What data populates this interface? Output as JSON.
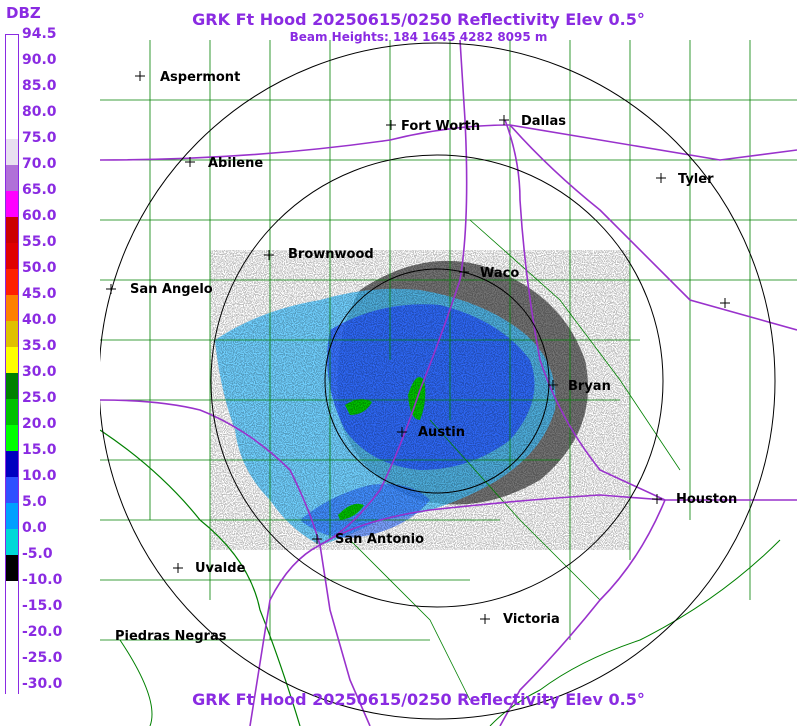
{
  "title": "GRK Ft Hood 20250615/0250 Reflectivity Elev 0.5°",
  "subtitle": "Beam Heights: 184 1645 4282 8095 m",
  "title_bottom": "GRK Ft Hood 20250615/0250 Reflectivity Elev 0.5°",
  "legend": {
    "unit": "DBZ",
    "labels": [
      "94.5",
      "90.0",
      "85.0",
      "80.0",
      "75.0",
      "70.0",
      "65.0",
      "60.0",
      "55.0",
      "50.0",
      "45.0",
      "40.0",
      "35.0",
      "30.0",
      "25.0",
      "20.0",
      "15.0",
      "10.0",
      "5.0",
      "0.0",
      "-5.0",
      "-10.0",
      "-15.0",
      "-20.0",
      "-25.0",
      "-30.0"
    ],
    "colors": [
      "#ffffff",
      "#ffffff",
      "#ffffff",
      "#ffffff",
      "#e8e0f0",
      "#b070d8",
      "#ff00ff",
      "#cc0000",
      "#e00000",
      "#ff2000",
      "#ff8000",
      "#e0c000",
      "#ffff00",
      "#008000",
      "#00c000",
      "#00ff00",
      "#0000c0",
      "#3050ff",
      "#00a0ff",
      "#00d8d8",
      "#000000",
      "#ffffff",
      "#ffffff",
      "#ffffff",
      "#ffffff",
      "#ffffff"
    ]
  },
  "cities": [
    {
      "name": "Aspermont"
    },
    {
      "name": "Fort Worth"
    },
    {
      "name": "Dallas"
    },
    {
      "name": "Abilene"
    },
    {
      "name": "Tyler"
    },
    {
      "name": "Brownwood"
    },
    {
      "name": "Waco"
    },
    {
      "name": "San Angelo"
    },
    {
      "name": "Bryan"
    },
    {
      "name": "Austin"
    },
    {
      "name": "Houston"
    },
    {
      "name": "San Antonio"
    },
    {
      "name": "Uvalde"
    },
    {
      "name": "Victoria"
    },
    {
      "name": "Piedras Negras"
    },
    {
      "name": ""
    }
  ],
  "colors": {
    "text": "#8a2be2",
    "county_lines": "#008000",
    "highways": "#9932cc",
    "range_rings": "#000000",
    "echo_light": "#40c0ff",
    "echo_blue": "#2040ff",
    "echo_green": "#00c000",
    "echo_clutter": "#000000"
  }
}
